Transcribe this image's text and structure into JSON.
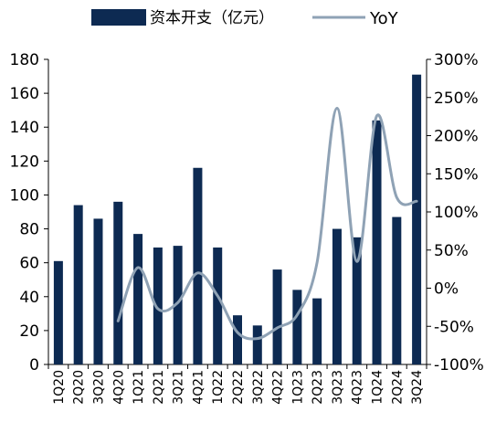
{
  "chart_data": {
    "type": "bar",
    "categories": [
      "1Q20",
      "2Q20",
      "3Q20",
      "4Q20",
      "1Q21",
      "2Q21",
      "3Q21",
      "4Q21",
      "1Q22",
      "2Q22",
      "3Q22",
      "4Q22",
      "1Q23",
      "2Q23",
      "3Q23",
      "4Q23",
      "1Q24",
      "2Q24",
      "3Q24"
    ],
    "series": [
      {
        "name": "资本开支（亿元）",
        "type": "bar",
        "axis": "left",
        "color": "#0d2a52",
        "values": [
          61,
          94,
          86,
          96,
          77,
          69,
          70,
          116,
          69,
          29,
          23,
          56,
          44,
          39,
          80,
          75,
          144,
          87,
          171
        ]
      },
      {
        "name": "YoY",
        "type": "line",
        "axis": "right",
        "smooth": true,
        "color": "#8fa2b5",
        "values": [
          null,
          null,
          null,
          -43,
          27,
          -27,
          -19,
          20,
          -10,
          -58,
          -66,
          -52,
          -35,
          34,
          236,
          35,
          226,
          119,
          114
        ]
      }
    ],
    "y_left": {
      "range": [
        0,
        180
      ],
      "ticks": [
        0,
        20,
        40,
        60,
        80,
        100,
        120,
        140,
        160,
        180
      ]
    },
    "y_right": {
      "range": [
        -100,
        300
      ],
      "ticks": [
        "-100%",
        "-50%",
        "0%",
        "50%",
        "100%",
        "150%",
        "200%",
        "250%",
        "300%"
      ]
    },
    "legend": {
      "position": "top",
      "entries": [
        "资本开支（亿元）",
        "YoY"
      ]
    },
    "grid": false
  }
}
